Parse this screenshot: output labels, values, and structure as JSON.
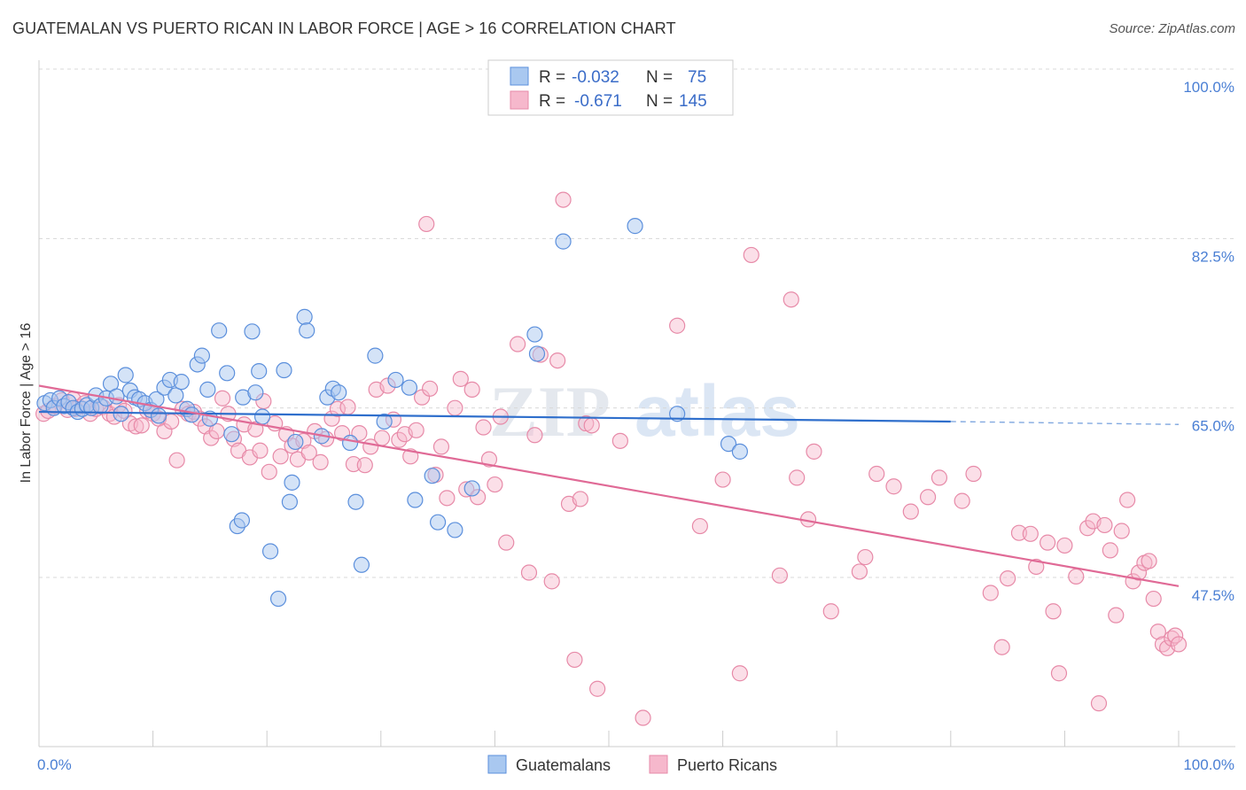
{
  "title": "GUATEMALAN VS PUERTO RICAN IN LABOR FORCE | AGE > 16 CORRELATION CHART",
  "source": "Source: ZipAtlas.com",
  "watermark": {
    "zip": "ZIP",
    "atlas": "atlas"
  },
  "legend": {
    "r_label": "R =",
    "n_label": "N =",
    "rows": [
      {
        "series": "Guatemalans",
        "r": "-0.032",
        "n": "75"
      },
      {
        "series": "Puerto Ricans",
        "r": "-0.671",
        "n": "145"
      }
    ]
  },
  "colors": {
    "guatemalans_fill": "#a9c8f0",
    "guatemalans_stroke": "#5b8fdc",
    "guatemalans_line": "#2f6fcc",
    "puerto_ricans_fill": "#f6b8cc",
    "puerto_ricans_stroke": "#e78aa8",
    "puerto_ricans_line": "#e06a96",
    "tick_text": "#4a7fd4",
    "grid": "#d8d8d8"
  },
  "chart_data": {
    "type": "scatter",
    "title": "GUATEMALAN VS PUERTO RICAN IN LABOR FORCE | AGE > 16 CORRELATION CHART",
    "xlabel": "",
    "ylabel": "In Labor Force | Age > 16",
    "xlim": [
      0,
      100
    ],
    "ylim": [
      32,
      102
    ],
    "x_ticks": [
      "0.0%",
      "100.0%"
    ],
    "y_ticks": [
      {
        "value": 100,
        "label": "100.0%"
      },
      {
        "value": 82.5,
        "label": "82.5%"
      },
      {
        "value": 65,
        "label": "65.0%"
      },
      {
        "value": 47.5,
        "label": "47.5%"
      }
    ],
    "bottom_legend": [
      "Guatemalans",
      "Puerto Ricans"
    ],
    "series": [
      {
        "name": "Guatemalans",
        "trend": {
          "x0": 0,
          "y0": 64.6,
          "x1": 80,
          "y1": 63.6,
          "dash_x1": 100,
          "dash_y1": 63.3
        },
        "points": [
          [
            0.5,
            65.5
          ],
          [
            1.0,
            65.8
          ],
          [
            1.3,
            65.0
          ],
          [
            1.8,
            66.0
          ],
          [
            2.2,
            65.2
          ],
          [
            2.6,
            65.6
          ],
          [
            3.0,
            65.0
          ],
          [
            3.4,
            64.6
          ],
          [
            3.8,
            64.9
          ],
          [
            4.2,
            65.3
          ],
          [
            4.6,
            65.0
          ],
          [
            5.0,
            66.3
          ],
          [
            5.4,
            65.2
          ],
          [
            5.9,
            66.0
          ],
          [
            6.3,
            67.5
          ],
          [
            6.8,
            66.2
          ],
          [
            7.2,
            64.4
          ],
          [
            7.6,
            68.4
          ],
          [
            8.0,
            66.8
          ],
          [
            8.4,
            66.1
          ],
          [
            8.8,
            65.9
          ],
          [
            9.3,
            65.5
          ],
          [
            9.8,
            64.8
          ],
          [
            10.3,
            65.9
          ],
          [
            10.5,
            64.2
          ],
          [
            11.0,
            67.1
          ],
          [
            11.5,
            67.9
          ],
          [
            12.0,
            66.3
          ],
          [
            12.5,
            67.7
          ],
          [
            13.0,
            64.9
          ],
          [
            13.4,
            64.3
          ],
          [
            13.9,
            69.5
          ],
          [
            14.3,
            70.4
          ],
          [
            14.8,
            66.9
          ],
          [
            15.0,
            63.9
          ],
          [
            15.8,
            73.0
          ],
          [
            16.5,
            68.6
          ],
          [
            16.9,
            62.3
          ],
          [
            17.4,
            52.8
          ],
          [
            17.8,
            53.4
          ],
          [
            17.9,
            66.1
          ],
          [
            18.7,
            72.9
          ],
          [
            19.0,
            66.6
          ],
          [
            19.3,
            68.8
          ],
          [
            19.6,
            64.1
          ],
          [
            20.3,
            50.2
          ],
          [
            21.0,
            45.3
          ],
          [
            21.5,
            68.9
          ],
          [
            22.0,
            55.3
          ],
          [
            22.2,
            57.3
          ],
          [
            22.5,
            61.5
          ],
          [
            23.3,
            74.4
          ],
          [
            23.5,
            73.0
          ],
          [
            24.8,
            62.1
          ],
          [
            25.3,
            66.1
          ],
          [
            25.8,
            67.0
          ],
          [
            26.3,
            66.6
          ],
          [
            27.3,
            61.4
          ],
          [
            27.8,
            55.3
          ],
          [
            28.3,
            48.8
          ],
          [
            29.5,
            70.4
          ],
          [
            30.3,
            63.6
          ],
          [
            31.3,
            67.9
          ],
          [
            32.5,
            67.1
          ],
          [
            33.0,
            55.5
          ],
          [
            34.5,
            58.0
          ],
          [
            35.0,
            53.2
          ],
          [
            36.5,
            52.4
          ],
          [
            38.0,
            56.7
          ],
          [
            43.5,
            72.6
          ],
          [
            43.7,
            70.6
          ],
          [
            46.0,
            82.2
          ],
          [
            52.3,
            83.8
          ],
          [
            56.0,
            64.4
          ],
          [
            60.5,
            61.3
          ],
          [
            61.5,
            60.5
          ]
        ]
      },
      {
        "name": "Puerto Ricans",
        "trend": {
          "x0": 0,
          "y0": 67.3,
          "x1": 100,
          "y1": 46.6
        },
        "points": [
          [
            0.4,
            64.4
          ],
          [
            0.8,
            64.7
          ],
          [
            1.4,
            65.2
          ],
          [
            2.0,
            65.8
          ],
          [
            2.5,
            64.8
          ],
          [
            3.0,
            65.9
          ],
          [
            3.5,
            65.1
          ],
          [
            4.0,
            65.5
          ],
          [
            4.5,
            64.4
          ],
          [
            5.0,
            64.9
          ],
          [
            5.6,
            65.1
          ],
          [
            6.2,
            64.4
          ],
          [
            6.6,
            64.1
          ],
          [
            7.0,
            65.3
          ],
          [
            7.5,
            64.7
          ],
          [
            8.0,
            63.4
          ],
          [
            8.5,
            63.1
          ],
          [
            9.0,
            63.2
          ],
          [
            9.5,
            64.7
          ],
          [
            10.0,
            64.4
          ],
          [
            10.5,
            63.9
          ],
          [
            11.0,
            62.6
          ],
          [
            11.6,
            63.6
          ],
          [
            12.1,
            59.6
          ],
          [
            12.6,
            64.9
          ],
          [
            13.1,
            64.4
          ],
          [
            13.6,
            64.6
          ],
          [
            14.1,
            63.9
          ],
          [
            14.6,
            63.1
          ],
          [
            15.1,
            61.9
          ],
          [
            15.6,
            62.6
          ],
          [
            16.1,
            66.0
          ],
          [
            16.6,
            64.4
          ],
          [
            17.1,
            61.8
          ],
          [
            17.5,
            60.6
          ],
          [
            18.0,
            63.3
          ],
          [
            18.5,
            59.9
          ],
          [
            19.0,
            62.8
          ],
          [
            19.4,
            60.6
          ],
          [
            19.7,
            65.7
          ],
          [
            20.2,
            58.4
          ],
          [
            20.7,
            63.4
          ],
          [
            21.2,
            60.0
          ],
          [
            21.7,
            62.3
          ],
          [
            22.2,
            61.1
          ],
          [
            22.7,
            59.7
          ],
          [
            23.2,
            61.6
          ],
          [
            23.7,
            60.4
          ],
          [
            24.2,
            62.6
          ],
          [
            24.7,
            59.4
          ],
          [
            25.2,
            61.8
          ],
          [
            25.7,
            63.9
          ],
          [
            26.2,
            64.9
          ],
          [
            26.6,
            62.4
          ],
          [
            27.1,
            65.1
          ],
          [
            27.6,
            59.2
          ],
          [
            28.1,
            62.4
          ],
          [
            28.6,
            59.1
          ],
          [
            29.1,
            61.0
          ],
          [
            29.6,
            66.9
          ],
          [
            30.1,
            61.9
          ],
          [
            30.6,
            67.3
          ],
          [
            31.1,
            63.8
          ],
          [
            31.6,
            61.7
          ],
          [
            32.1,
            62.3
          ],
          [
            32.6,
            60.0
          ],
          [
            33.1,
            62.7
          ],
          [
            33.6,
            66.1
          ],
          [
            34.0,
            84.0
          ],
          [
            34.3,
            67.0
          ],
          [
            34.8,
            58.1
          ],
          [
            35.3,
            61.0
          ],
          [
            35.8,
            55.7
          ],
          [
            36.5,
            65.0
          ],
          [
            37.0,
            68.0
          ],
          [
            37.5,
            56.6
          ],
          [
            38.0,
            66.9
          ],
          [
            38.5,
            55.8
          ],
          [
            39.0,
            63.0
          ],
          [
            39.5,
            59.7
          ],
          [
            40.0,
            57.1
          ],
          [
            40.5,
            64.1
          ],
          [
            41.0,
            51.1
          ],
          [
            42.0,
            71.6
          ],
          [
            43.0,
            48.0
          ],
          [
            43.5,
            62.2
          ],
          [
            44.0,
            70.5
          ],
          [
            45.0,
            47.1
          ],
          [
            45.5,
            69.9
          ],
          [
            46.0,
            86.5
          ],
          [
            46.5,
            55.1
          ],
          [
            47.0,
            39.0
          ],
          [
            47.5,
            55.6
          ],
          [
            48.0,
            63.4
          ],
          [
            48.5,
            63.2
          ],
          [
            49.0,
            36.0
          ],
          [
            51.0,
            61.6
          ],
          [
            53.0,
            33.0
          ],
          [
            56.0,
            73.5
          ],
          [
            58.0,
            52.8
          ],
          [
            60.0,
            57.6
          ],
          [
            61.5,
            37.6
          ],
          [
            62.5,
            80.8
          ],
          [
            65.0,
            47.7
          ],
          [
            66.0,
            76.2
          ],
          [
            66.5,
            57.8
          ],
          [
            67.5,
            53.5
          ],
          [
            68.0,
            60.5
          ],
          [
            69.5,
            44.0
          ],
          [
            72.0,
            48.1
          ],
          [
            72.5,
            49.6
          ],
          [
            73.5,
            58.2
          ],
          [
            75.0,
            56.9
          ],
          [
            76.5,
            54.3
          ],
          [
            78.0,
            55.8
          ],
          [
            79.0,
            57.8
          ],
          [
            81.0,
            55.4
          ],
          [
            82.0,
            58.2
          ],
          [
            83.5,
            45.9
          ],
          [
            84.5,
            40.3
          ],
          [
            85.0,
            47.4
          ],
          [
            86.0,
            52.1
          ],
          [
            87.0,
            52.0
          ],
          [
            87.5,
            48.6
          ],
          [
            88.5,
            51.1
          ],
          [
            89.0,
            44.0
          ],
          [
            89.5,
            37.6
          ],
          [
            90.0,
            50.8
          ],
          [
            91.0,
            47.6
          ],
          [
            92.0,
            52.6
          ],
          [
            92.5,
            53.3
          ],
          [
            93.0,
            34.5
          ],
          [
            93.5,
            52.9
          ],
          [
            94.0,
            50.3
          ],
          [
            94.5,
            43.6
          ],
          [
            95.0,
            52.3
          ],
          [
            95.5,
            55.5
          ],
          [
            96.0,
            47.1
          ],
          [
            96.5,
            48.0
          ],
          [
            97.0,
            49.0
          ],
          [
            97.4,
            49.2
          ],
          [
            97.8,
            45.3
          ],
          [
            98.2,
            41.9
          ],
          [
            98.6,
            40.6
          ],
          [
            99.0,
            40.2
          ],
          [
            99.4,
            41.2
          ],
          [
            99.7,
            41.5
          ],
          [
            100.0,
            40.6
          ],
          [
            3.2,
            64.9
          ]
        ]
      }
    ]
  }
}
